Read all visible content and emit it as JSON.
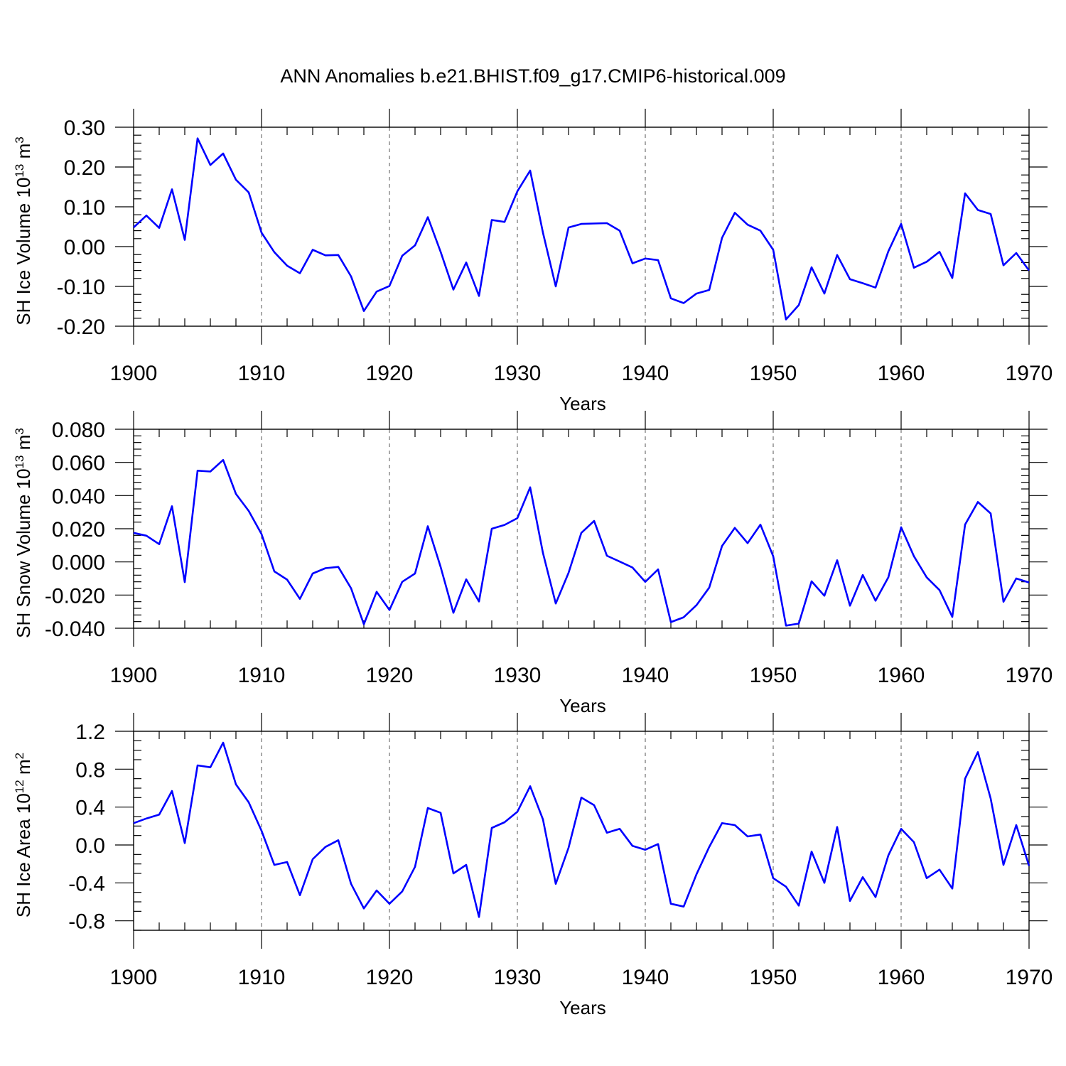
{
  "chart_data": {
    "type": "line",
    "title": "ANN Anomalies b.e21.BHIST.f09_g17.CMIP6-historical.009",
    "color": "#0000ff",
    "years": [
      1900,
      1901,
      1902,
      1903,
      1904,
      1905,
      1906,
      1907,
      1908,
      1909,
      1910,
      1911,
      1912,
      1913,
      1914,
      1915,
      1916,
      1917,
      1918,
      1919,
      1920,
      1921,
      1922,
      1923,
      1924,
      1925,
      1926,
      1927,
      1928,
      1929,
      1930,
      1931,
      1932,
      1933,
      1934,
      1935,
      1936,
      1937,
      1938,
      1939,
      1940,
      1941,
      1942,
      1943,
      1944,
      1945,
      1946,
      1947,
      1948,
      1949,
      1950,
      1951,
      1952,
      1953,
      1954,
      1955,
      1956,
      1957,
      1958,
      1959,
      1960,
      1961,
      1962,
      1963,
      1964,
      1965,
      1966,
      1967,
      1968,
      1969,
      1970
    ],
    "panels": [
      {
        "name": "ice-volume",
        "ylabel_main": "SH Ice Volume 10",
        "ylabel_sup1": "13",
        "ylabel_mid": " m",
        "ylabel_sup2": "3",
        "xlabel": "Years",
        "ylim": [
          -0.2,
          0.3
        ],
        "yticks": [
          -0.2,
          -0.1,
          0.0,
          0.1,
          0.2,
          0.3
        ],
        "ytick_labels": [
          "-0.20",
          "-0.10",
          "0.00",
          "0.10",
          "0.20",
          "0.30"
        ],
        "minor_step": 0.02,
        "xlim": [
          1900,
          1970
        ],
        "xticks": [
          1900,
          1910,
          1920,
          1930,
          1940,
          1950,
          1960,
          1970
        ],
        "xtick_labels": [
          "1900",
          "1910",
          "1920",
          "1930",
          "1940",
          "1950",
          "1960",
          "1970"
        ],
        "values": [
          0.048,
          0.078,
          0.047,
          0.144,
          0.017,
          0.272,
          0.205,
          0.234,
          0.168,
          0.136,
          0.035,
          -0.014,
          -0.048,
          -0.067,
          -0.008,
          -0.022,
          -0.021,
          -0.075,
          -0.162,
          -0.113,
          -0.099,
          -0.023,
          0.003,
          0.074,
          -0.013,
          -0.108,
          -0.04,
          -0.124,
          0.067,
          0.062,
          0.139,
          0.191,
          0.035,
          -0.1,
          0.048,
          0.057,
          0.058,
          0.059,
          0.04,
          -0.042,
          -0.03,
          -0.034,
          -0.13,
          -0.142,
          -0.118,
          -0.109,
          0.022,
          0.085,
          0.055,
          0.04,
          -0.008,
          -0.183,
          -0.147,
          -0.052,
          -0.118,
          -0.021,
          -0.082,
          -0.092,
          -0.103,
          -0.012,
          0.057,
          -0.053,
          -0.038,
          -0.013,
          -0.079,
          0.134,
          0.092,
          0.082,
          -0.047,
          -0.016,
          -0.06
        ]
      },
      {
        "name": "snow-volume",
        "ylabel_main": "SH Snow Volume 10",
        "ylabel_sup1": "13",
        "ylabel_mid": " m",
        "ylabel_sup2": "3",
        "xlabel": "Years",
        "ylim": [
          -0.04,
          0.08
        ],
        "yticks": [
          -0.04,
          -0.02,
          0.0,
          0.02,
          0.04,
          0.06,
          0.08
        ],
        "ytick_labels": [
          "-0.040",
          "-0.020",
          "0.000",
          "0.020",
          "0.040",
          "0.060",
          "0.080"
        ],
        "minor_step": 0.004,
        "xlim": [
          1900,
          1970
        ],
        "xticks": [
          1900,
          1910,
          1920,
          1930,
          1940,
          1950,
          1960,
          1970
        ],
        "xtick_labels": [
          "1900",
          "1910",
          "1920",
          "1930",
          "1940",
          "1950",
          "1960",
          "1970"
        ],
        "values": [
          0.0175,
          0.0158,
          0.0107,
          0.0336,
          -0.0122,
          0.055,
          0.0545,
          0.0615,
          0.041,
          0.0307,
          0.0168,
          -0.0057,
          -0.0107,
          -0.0223,
          -0.007,
          -0.0038,
          -0.003,
          -0.0159,
          -0.0376,
          -0.018,
          -0.029,
          -0.012,
          -0.007,
          0.0215,
          -0.003,
          -0.0307,
          -0.0105,
          -0.0239,
          0.02,
          0.0223,
          0.0264,
          0.045,
          0.0054,
          -0.0251,
          -0.0066,
          0.0175,
          0.0247,
          0.0037,
          0.0002,
          -0.0034,
          -0.012,
          -0.0045,
          -0.0363,
          -0.0334,
          -0.0261,
          -0.0155,
          0.0096,
          0.0205,
          0.0113,
          0.0225,
          0.0034,
          -0.0384,
          -0.0372,
          -0.0117,
          -0.0204,
          0.001,
          -0.0264,
          -0.0079,
          -0.0234,
          -0.0093,
          0.0209,
          0.0034,
          -0.0093,
          -0.017,
          -0.0332,
          0.0225,
          0.0361,
          0.0292,
          -0.024,
          -0.01,
          -0.0124
        ]
      },
      {
        "name": "ice-area",
        "ylabel_main": "SH Ice Area 10",
        "ylabel_sup1": "12",
        "ylabel_mid": " m",
        "ylabel_sup2": "2",
        "xlabel": "Years",
        "ylim": [
          -0.9,
          1.2
        ],
        "yticks": [
          -0.8,
          -0.4,
          0.0,
          0.4,
          0.8,
          1.2
        ],
        "ytick_labels": [
          "-0.8",
          "-0.4",
          "0.0",
          "0.4",
          "0.8",
          "1.2"
        ],
        "minor_step": 0.1,
        "xlim": [
          1900,
          1970
        ],
        "xticks": [
          1900,
          1910,
          1920,
          1930,
          1940,
          1950,
          1960,
          1970
        ],
        "xtick_labels": [
          "1900",
          "1910",
          "1920",
          "1930",
          "1940",
          "1950",
          "1960",
          "1970"
        ],
        "values": [
          0.23,
          0.28,
          0.32,
          0.57,
          0.02,
          0.84,
          0.82,
          1.08,
          0.64,
          0.45,
          0.15,
          -0.21,
          -0.18,
          -0.53,
          -0.15,
          -0.02,
          0.05,
          -0.41,
          -0.67,
          -0.48,
          -0.62,
          -0.49,
          -0.23,
          0.39,
          0.34,
          -0.3,
          -0.21,
          -0.76,
          0.18,
          0.24,
          0.35,
          0.62,
          0.27,
          -0.41,
          -0.03,
          0.5,
          0.42,
          0.13,
          0.17,
          -0.01,
          -0.05,
          0.01,
          -0.62,
          -0.65,
          -0.31,
          -0.02,
          0.23,
          0.21,
          0.09,
          0.11,
          -0.35,
          -0.44,
          -0.64,
          -0.07,
          -0.4,
          0.19,
          -0.59,
          -0.34,
          -0.55,
          -0.11,
          0.17,
          0.03,
          -0.35,
          -0.26,
          -0.46,
          0.7,
          0.98,
          0.49,
          -0.21,
          0.21,
          -0.22
        ]
      }
    ]
  }
}
